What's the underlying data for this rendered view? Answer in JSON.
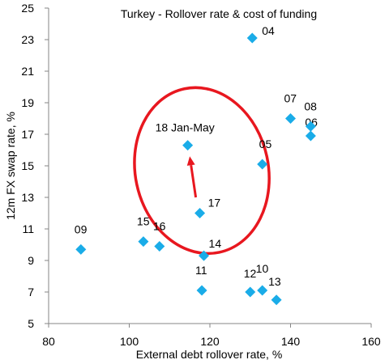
{
  "chart_data": {
    "type": "scatter",
    "title": "Turkey - Rollover rate & cost of funding",
    "xlabel": "External debt rollover rate, %",
    "ylabel": "12m FX swap rate, %",
    "xlim": [
      80,
      160
    ],
    "ylim": [
      5,
      25
    ],
    "xticks": [
      80,
      100,
      120,
      140,
      160
    ],
    "yticks": [
      5,
      7,
      9,
      11,
      13,
      15,
      17,
      19,
      21,
      23,
      25
    ],
    "grid": false,
    "marker_color": "#1AACE8",
    "annotation_color": "#E8171F",
    "points": [
      {
        "label": "04",
        "x": 130.5,
        "y": 23.1
      },
      {
        "label": "05",
        "x": 133.0,
        "y": 15.1
      },
      {
        "label": "06",
        "x": 145.0,
        "y": 16.9
      },
      {
        "label": "07",
        "x": 140.0,
        "y": 18.0
      },
      {
        "label": "08",
        "x": 145.0,
        "y": 17.5
      },
      {
        "label": "09",
        "x": 88.0,
        "y": 9.7
      },
      {
        "label": "10",
        "x": 133.0,
        "y": 7.1
      },
      {
        "label": "11",
        "x": 118.0,
        "y": 7.1
      },
      {
        "label": "12",
        "x": 130.0,
        "y": 7.0
      },
      {
        "label": "13",
        "x": 136.5,
        "y": 6.5
      },
      {
        "label": "14",
        "x": 118.5,
        "y": 9.3
      },
      {
        "label": "15",
        "x": 103.5,
        "y": 10.2
      },
      {
        "label": "16",
        "x": 107.5,
        "y": 9.9
      },
      {
        "label": "17",
        "x": 117.5,
        "y": 12.0
      },
      {
        "label": "18 Jan-May",
        "x": 114.5,
        "y": 16.3
      }
    ],
    "annotations": {
      "arrow": {
        "from": {
          "x": 116.5,
          "y": 13.0
        },
        "to": {
          "x": 115.0,
          "y": 15.6
        }
      },
      "ellipse": {
        "cx": 118.0,
        "cy": 14.7,
        "rx": 16.5,
        "ry": 5.3
      }
    }
  }
}
